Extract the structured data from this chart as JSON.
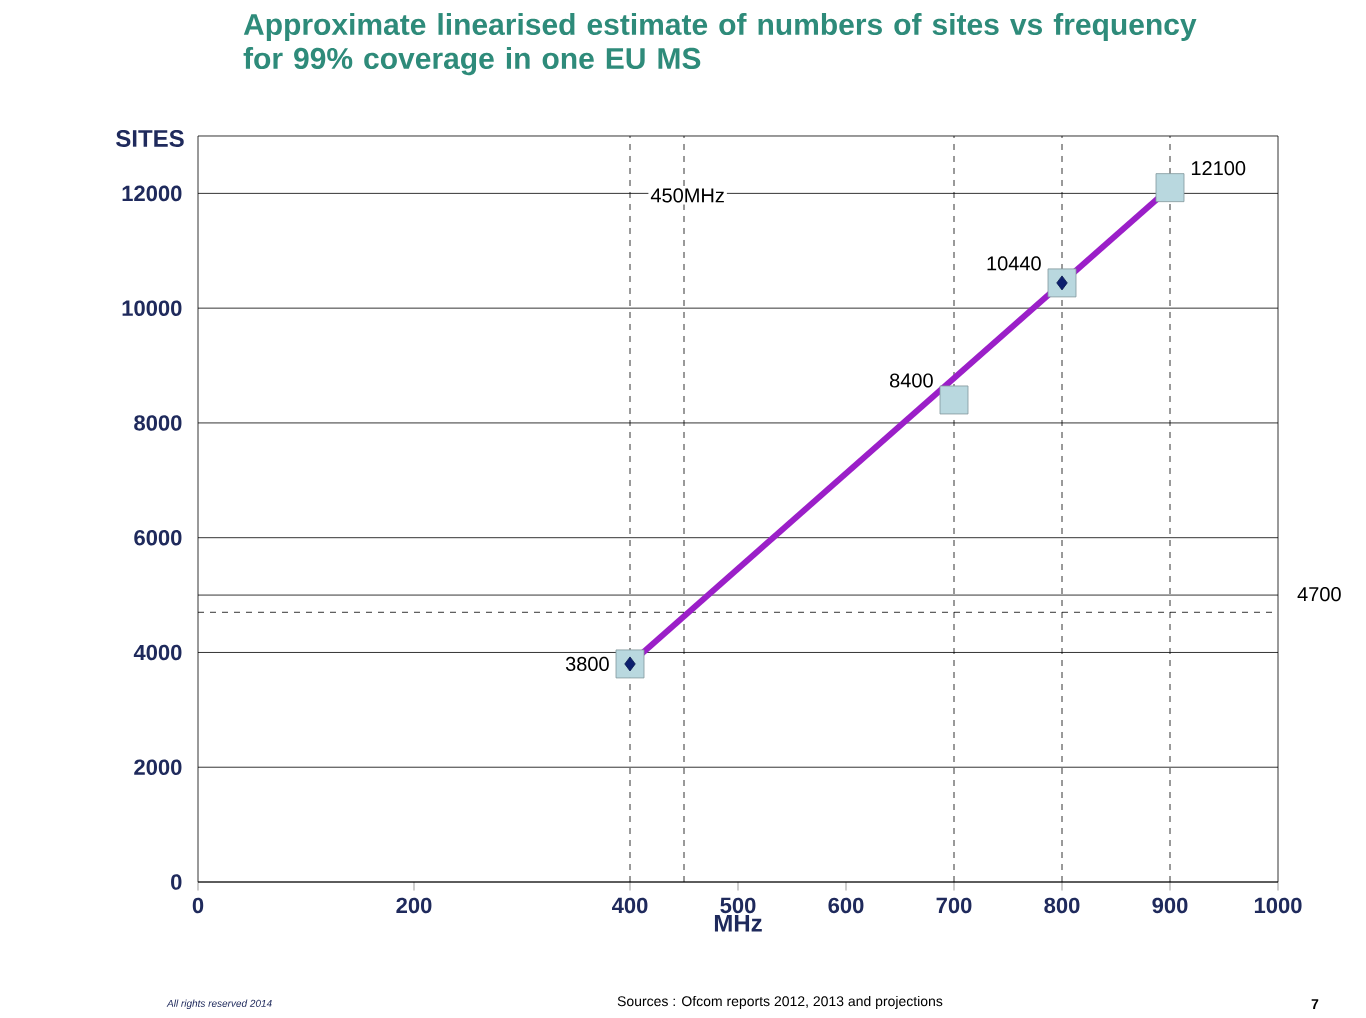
{
  "chart_data": {
    "type": "line",
    "title": "Approximate linearised estimate of numbers of sites vs frequency for 99% coverage in one EU MS",
    "xlabel": "MHz",
    "ylabel": "SITES",
    "xlim": [
      0,
      1000
    ],
    "xticks": [
      0,
      200,
      400,
      500,
      600,
      700,
      800,
      900,
      1000
    ],
    "ylim": [
      0,
      13000
    ],
    "yticks": [
      0,
      2000,
      4000,
      6000,
      8000,
      10000,
      12000
    ],
    "grid": "y",
    "series": [
      {
        "color": "#9b1fc8",
        "x": [
          400,
          900
        ],
        "values": [
          3800,
          12100
        ],
        "marker": "none"
      },
      {
        "type": "scatter",
        "color": "#b9d8df",
        "x": [
          400,
          700,
          800,
          900
        ],
        "values": [
          3800,
          8400,
          10440,
          12100
        ],
        "marker": "square",
        "value_labels": [
          "3800",
          "8400",
          "10440",
          "12100"
        ]
      },
      {
        "type": "scatter",
        "color": "#0d1f6e",
        "x": [
          400,
          800
        ],
        "values": [
          3800,
          10440
        ],
        "marker": "diamond"
      }
    ],
    "ref_lines": [
      {
        "axis": "x",
        "value": 450,
        "label": "450MHz",
        "line_style": "dashed"
      },
      {
        "axis": "x",
        "value": 400,
        "line_style": "dashed"
      },
      {
        "axis": "x",
        "value": 700,
        "line_style": "dashed"
      },
      {
        "axis": "x",
        "value": 800,
        "line_style": "dashed"
      },
      {
        "axis": "x",
        "value": 900,
        "line_style": "dashed"
      },
      {
        "axis": "y",
        "value": 4700,
        "label": "4700",
        "line_style": "dashed"
      },
      {
        "axis": "y",
        "value": 5000,
        "line_style": "solid"
      }
    ],
    "annotations": [
      "All rights reserved 2014",
      "Sources : Ofcom reports 2012, 2013 and projections",
      "7"
    ]
  }
}
